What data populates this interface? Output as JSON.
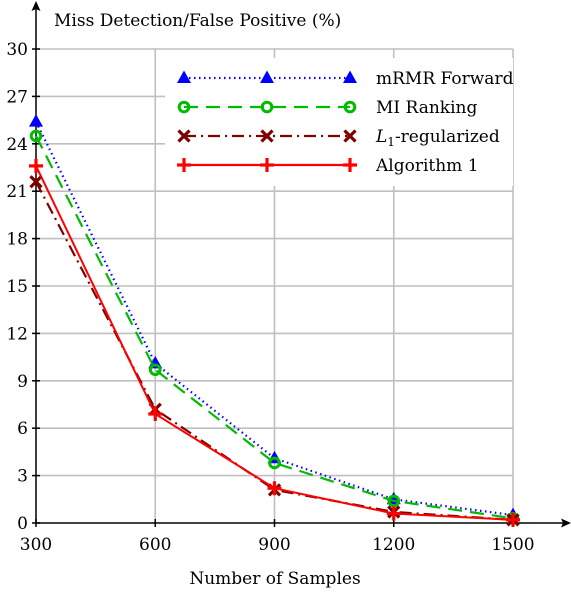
{
  "chart_data": {
    "type": "line",
    "title": "",
    "ylabel": "Miss Detection/False Positive (%)",
    "xlabel": "Number of Samples",
    "x": [
      300,
      600,
      900,
      1200,
      1500
    ],
    "xlim": [
      300,
      1500
    ],
    "ylim": [
      0,
      30
    ],
    "xticks": [
      "300",
      "600",
      "900",
      "1200",
      "1500"
    ],
    "yticks": [
      "0",
      "3",
      "6",
      "9",
      "12",
      "15",
      "18",
      "21",
      "24",
      "27",
      "30"
    ],
    "grid": true,
    "legend_position": "top-right",
    "series": [
      {
        "name": "mRMR Forward",
        "name_parts": {
          "main": "mRMR Forward",
          "sub": "",
          "rest": ""
        },
        "values": [
          25.4,
          10.1,
          4.1,
          1.5,
          0.5
        ],
        "color": "#0000ff",
        "marker": "triangle",
        "dash": "dotted"
      },
      {
        "name": "MI Ranking",
        "name_parts": {
          "main": "MI Ranking",
          "sub": "",
          "rest": ""
        },
        "values": [
          24.5,
          9.7,
          3.8,
          1.4,
          0.3
        ],
        "color": "#00bb00",
        "marker": "circle",
        "dash": "dashed"
      },
      {
        "name": "L1-regularized",
        "name_parts": {
          "main": "L",
          "sub": "1",
          "rest": "-regularized"
        },
        "values": [
          21.6,
          7.2,
          2.1,
          0.7,
          0.2
        ],
        "color": "#7f0000",
        "marker": "x",
        "dash": "dashdot"
      },
      {
        "name": "Algorithm 1",
        "name_parts": {
          "main": "Algorithm 1",
          "sub": "",
          "rest": ""
        },
        "values": [
          22.6,
          6.9,
          2.2,
          0.6,
          0.2
        ],
        "color": "#ff0000",
        "marker": "plus",
        "dash": "solid"
      }
    ]
  }
}
